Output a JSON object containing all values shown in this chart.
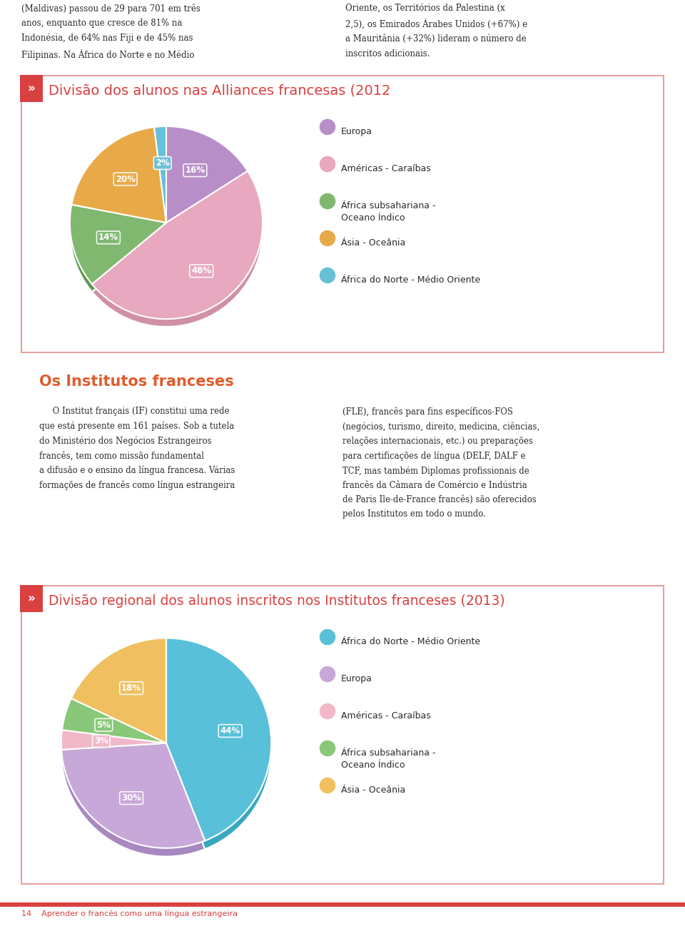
{
  "page_bg": "#ffffff",
  "box_bg": "#ffffff",
  "box_border": "#e8a0a0",
  "red_accent": "#d94040",
  "orange_accent": "#e05c2c",
  "top_text_left": "(Maldivas) passou de 29 para 701 em três\nanos, enquanto que cresce de 81% na\nIndonésia, de 64% nas Fiji e de 45% nas\nFilipinas. Na África do Norte e no Médio",
  "top_text_right": "Oriente, os Territórios da Palestina (x\n2,5), os Emirados Árabes Unidos (+67%) e\na Mauritânia (+32%) lideram o número de\ninscritos adicionais.",
  "chart1_title": "Divisão dos alunos nas Alliances francesas (2012",
  "chart1_values": [
    16,
    48,
    14,
    20,
    2
  ],
  "chart1_colors": [
    "#b88ec8",
    "#e8a8c0",
    "#80b870",
    "#e8aa48",
    "#68c0d8"
  ],
  "chart1_shadow_colors": [
    "#a070b0",
    "#d090a8",
    "#609850",
    "#c88830",
    "#48a8c0"
  ],
  "chart1_labels": [
    "16%",
    "48%",
    "14%",
    "20%",
    "2%"
  ],
  "chart1_legend": [
    "Europa",
    "Américas - Caraíbas",
    "África subsahariana -\nOceano Índico",
    "Ásia - Oceânia",
    "África do Norte - Médio Oriente"
  ],
  "chart1_legend_colors": [
    "#b88ec8",
    "#e8a8c0",
    "#80b870",
    "#e8aa48",
    "#68c0d8"
  ],
  "section_title": "Os Institutos franceses",
  "section_text_left": "     O Institut français (IF) constitui uma rede\nque está presente em 161 países. Sob a tutela\ndo Ministério dos Negócios Estrangeiros\nfrancês, tem como missão fundamental\na difusão e o ensino da língua francesa. Várias\nformações de francês como língua estrangeira",
  "section_text_right": "(FLE), francês para fins específicos-FOS\n(negócios, turismo, direito, medicina, ciências,\nrelações internacionais, etc.) ou preparações\npara certificações de língua (DELF, DALF e\nTCF, mas também Diplomas profissionais de\nfrancês da Câmara de Comércio e Indústria\nde Paris Ile-de-France francês) são oferecidos\npelos Institutos em todo o mundo.",
  "chart2_title": "Divisão regional dos alunos inscritos nos Institutos franceses (2013)",
  "chart2_values": [
    44,
    30,
    3,
    5,
    18
  ],
  "chart2_colors": [
    "#58c0d8",
    "#c8a8d8",
    "#f0b8c8",
    "#88c878",
    "#f0c060"
  ],
  "chart2_shadow_colors": [
    "#38a8c0",
    "#a888c0",
    "#d898a8",
    "#68a858",
    "#d8a040"
  ],
  "chart2_labels": [
    "44%",
    "30%",
    "3%",
    "5%",
    "18%"
  ],
  "chart2_legend": [
    "África do Norte - Médio Oriente",
    "Europa",
    "Américas - Caraíbas",
    "África subsahariana -\nOceano Índico",
    "Ásia - Oceânia"
  ],
  "chart2_legend_colors": [
    "#58c0d8",
    "#c8a8d8",
    "#f0b8c8",
    "#88c878",
    "#f0c060"
  ],
  "footer_text": "14    Aprender o francês como uma língua estrangeira",
  "footer_bar_color": "#d94040"
}
